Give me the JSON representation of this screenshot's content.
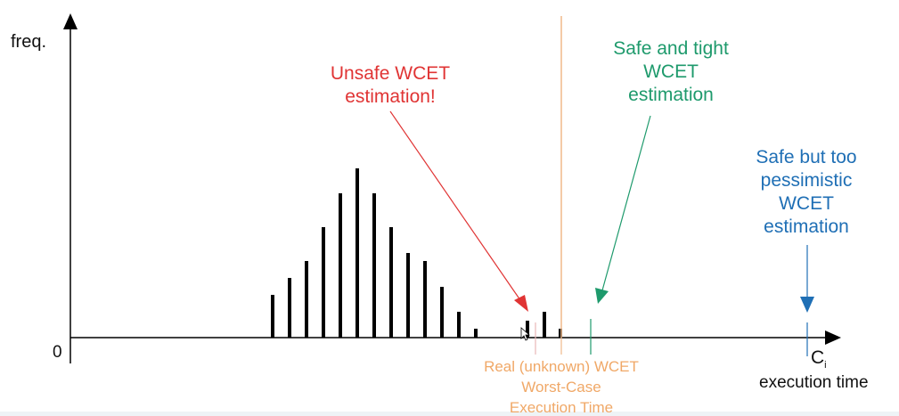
{
  "axes": {
    "y_label": "freq.",
    "origin_label": "0",
    "x_label_symbol": "C",
    "x_label_subscript": "i",
    "x_label_text": "execution time"
  },
  "annotations": {
    "unsafe": {
      "lines": [
        "Unsafe WCET",
        "estimation!"
      ],
      "color": "#e03434"
    },
    "safe_tight": {
      "lines": [
        "Safe and tight",
        "WCET",
        "estimation"
      ],
      "color": "#1e9a6c"
    },
    "pessimistic": {
      "lines": [
        "Safe but too",
        "pessimistic",
        "WCET",
        "estimation"
      ],
      "color": "#1f6fb5"
    },
    "real_wcet": {
      "lines": [
        "Real (unknown) WCET",
        "Worst-Case",
        "Execution Time"
      ],
      "color": "#f0a867"
    }
  },
  "distribution": {
    "bar_values": [
      48,
      67,
      86,
      124,
      162,
      190,
      162,
      124,
      95,
      86,
      57,
      29,
      10,
      19,
      29,
      10
    ]
  }
}
